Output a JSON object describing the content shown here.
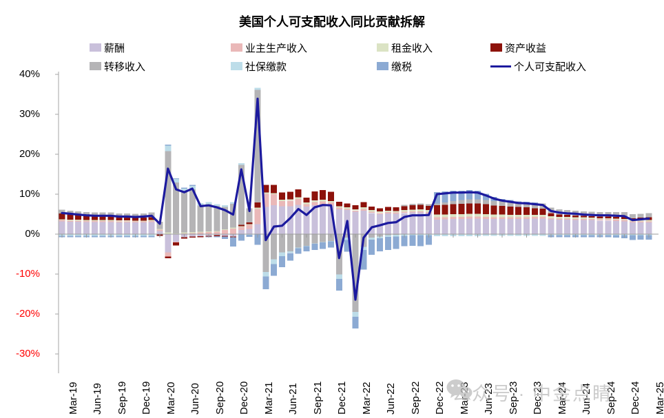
{
  "title": "美国个人可支配收入同比贡献拆解",
  "watermark": {
    "text": "公众号 · 中金点睛",
    "icon": "wechat-icon"
  },
  "legend": [
    {
      "label": "薪酬",
      "color": "#c9c0db",
      "type": "box"
    },
    {
      "label": "业主生产收入",
      "color": "#eab8b8",
      "type": "box"
    },
    {
      "label": "租金收入",
      "color": "#dbe3c4",
      "type": "box"
    },
    {
      "label": "资产收益",
      "color": "#8d120b",
      "type": "box"
    },
    {
      "label": "转移收入",
      "color": "#b5b4b6",
      "type": "box"
    },
    {
      "label": "社保缴款",
      "color": "#bddde9",
      "type": "box"
    },
    {
      "label": "缴税",
      "color": "#8caad3",
      "type": "box"
    },
    {
      "label": "个人可支配收入",
      "color": "#1c1a9e",
      "type": "line"
    }
  ],
  "y_axis": {
    "tick_labels": [
      "40%",
      "30%",
      "20%",
      "10%",
      "0%",
      "-10%",
      "-20%",
      "-30%"
    ],
    "tick_values": [
      40,
      30,
      20,
      10,
      0,
      -10,
      -20,
      -30
    ],
    "positive_color": "#000000",
    "negative_color": "#ff0000"
  },
  "chart_data": {
    "type": "bar",
    "subtype": "stacked-bar-with-line",
    "title": "美国个人可支配收入同比贡献拆解",
    "ylabel": "%",
    "ylim": [
      -30,
      40
    ],
    "x_tick_every": 3,
    "grid": false,
    "legend_position": "top",
    "months": [
      "Mar-19",
      "Apr-19",
      "May-19",
      "Jun-19",
      "Jul-19",
      "Aug-19",
      "Sep-19",
      "Oct-19",
      "Nov-19",
      "Dec-19",
      "Jan-20",
      "Feb-20",
      "Mar-20",
      "Apr-20",
      "May-20",
      "Jun-20",
      "Jul-20",
      "Aug-20",
      "Sep-20",
      "Oct-20",
      "Nov-20",
      "Dec-20",
      "Jan-21",
      "Feb-21",
      "Mar-21",
      "Apr-21",
      "May-21",
      "Jun-21",
      "Jul-21",
      "Aug-21",
      "Sep-21",
      "Oct-21",
      "Nov-21",
      "Dec-21",
      "Jan-22",
      "Feb-22",
      "Mar-22",
      "Apr-22",
      "May-22",
      "Jun-22",
      "Jul-22",
      "Aug-22",
      "Sep-22",
      "Oct-22",
      "Nov-22",
      "Dec-22",
      "Jan-23",
      "Feb-23",
      "Mar-23",
      "Apr-23",
      "May-23",
      "Jun-23",
      "Jul-23",
      "Aug-23",
      "Sep-23",
      "Oct-23",
      "Nov-23",
      "Dec-23",
      "Jan-24",
      "Feb-24",
      "Mar-24",
      "Apr-24",
      "May-24",
      "Jun-24",
      "Jul-24",
      "Aug-24",
      "Sep-24",
      "Oct-24",
      "Nov-24",
      "Dec-24",
      "Jan-25",
      "Feb-25",
      "Mar-25"
    ],
    "series": [
      {
        "name": "薪酬",
        "color": "#c9c0db",
        "values": [
          3.2,
          3.1,
          3.1,
          3.0,
          3.0,
          3.0,
          3.0,
          2.9,
          2.9,
          2.9,
          2.9,
          3.0,
          0.8,
          -4.6,
          -1.9,
          -0.8,
          -0.6,
          -0.5,
          -0.4,
          -0.3,
          -0.4,
          -0.6,
          1.0,
          1.3,
          2.5,
          6.8,
          7.2,
          7.0,
          7.0,
          7.3,
          6.9,
          7.2,
          7.4,
          7.2,
          6.2,
          6.0,
          5.6,
          5.9,
          5.3,
          5.0,
          5.2,
          5.1,
          5.3,
          5.4,
          5.4,
          5.2,
          3.6,
          3.7,
          3.8,
          3.8,
          3.9,
          3.9,
          3.8,
          3.8,
          3.8,
          3.8,
          3.8,
          3.8,
          3.9,
          3.9,
          3.7,
          3.6,
          3.6,
          3.5,
          3.5,
          3.5,
          3.4,
          3.4,
          3.3,
          3.2,
          2.9,
          2.9,
          2.9
        ]
      },
      {
        "name": "业主生产收入",
        "color": "#eab8b8",
        "values": [
          0.3,
          0.3,
          0.3,
          0.3,
          0.3,
          0.3,
          0.3,
          0.3,
          0.3,
          0.3,
          0.3,
          0.3,
          0.3,
          -1.0,
          -0.2,
          0.2,
          0.3,
          0.4,
          0.5,
          0.6,
          1.0,
          1.4,
          0.8,
          1.0,
          3.8,
          3.3,
          2.8,
          1.3,
          1.4,
          1.5,
          0.6,
          0.8,
          0.8,
          0.7,
          0.4,
          0.3,
          0.3,
          0.4,
          0.3,
          0.3,
          0.3,
          0.3,
          0.3,
          0.3,
          0.3,
          0.3,
          0.6,
          0.5,
          0.5,
          0.5,
          0.5,
          0.5,
          0.5,
          0.4,
          0.4,
          0.4,
          0.4,
          0.4,
          0.4,
          0.4,
          0.3,
          0.3,
          0.3,
          0.3,
          0.3,
          0.3,
          0.3,
          0.3,
          0.3,
          0.3,
          0.3,
          0.3,
          0.3
        ]
      },
      {
        "name": "租金收入",
        "color": "#dbe3c4",
        "values": [
          0.2,
          0.2,
          0.2,
          0.2,
          0.2,
          0.2,
          0.2,
          0.2,
          0.2,
          0.2,
          0.2,
          0.2,
          0.2,
          0.4,
          0.2,
          0.2,
          0.2,
          0.2,
          0.2,
          0.2,
          0.2,
          0.2,
          0.2,
          0.2,
          0.3,
          0.3,
          0.3,
          0.3,
          0.3,
          0.4,
          0.4,
          0.4,
          0.4,
          0.4,
          0.4,
          0.4,
          0.3,
          0.4,
          0.4,
          0.4,
          0.4,
          0.4,
          0.4,
          0.4,
          0.5,
          0.5,
          0.7,
          0.7,
          0.7,
          0.7,
          0.7,
          0.7,
          0.7,
          0.7,
          0.7,
          0.6,
          0.6,
          0.6,
          0.5,
          0.5,
          0.5,
          0.4,
          0.4,
          0.4,
          0.4,
          0.3,
          0.3,
          0.3,
          0.3,
          0.3,
          0.3,
          0.3,
          0.3
        ]
      },
      {
        "name": "资产收益",
        "color": "#8d120b",
        "values": [
          1.5,
          1.4,
          1.2,
          1.1,
          1.0,
          0.9,
          0.9,
          0.8,
          0.8,
          0.7,
          0.7,
          0.7,
          -0.4,
          -0.4,
          -0.7,
          -0.3,
          -0.3,
          -0.3,
          -0.2,
          -0.2,
          -0.2,
          -0.2,
          0.3,
          0.4,
          1.3,
          1.9,
          2.0,
          1.8,
          1.9,
          2.0,
          1.2,
          2.3,
          2.4,
          2.3,
          1.1,
          1.0,
          1.0,
          1.3,
          0.9,
          0.8,
          0.9,
          0.9,
          1.0,
          1.1,
          1.1,
          1.1,
          2.3,
          2.4,
          2.5,
          2.6,
          2.6,
          2.6,
          2.5,
          2.3,
          2.2,
          2.1,
          2.0,
          1.9,
          1.7,
          1.6,
          0.8,
          0.6,
          0.5,
          0.5,
          0.4,
          0.4,
          0.4,
          0.4,
          0.4,
          0.5,
          0.5,
          0.6,
          0.7
        ]
      },
      {
        "name": "转移收入",
        "color": "#b5b4b6",
        "values": [
          0.9,
          0.9,
          0.9,
          0.9,
          0.9,
          1.0,
          1.0,
          1.0,
          1.0,
          1.0,
          1.1,
          1.2,
          1.8,
          20.4,
          12.7,
          10.1,
          10.7,
          6.6,
          6.8,
          6.3,
          5.6,
          6.0,
          15.0,
          3.6,
          28.2,
          -9.5,
          -6.3,
          -4.6,
          -4.3,
          -3.4,
          -2.9,
          -2.3,
          -2.0,
          -1.7,
          -10.1,
          -0.9,
          -19.5,
          -3.2,
          -0.9,
          -0.6,
          -0.3,
          -0.2,
          0.3,
          0.4,
          0.4,
          0.4,
          0.5,
          0.6,
          0.8,
          0.9,
          1.0,
          1.0,
          1.0,
          1.1,
          1.1,
          1.2,
          1.2,
          1.2,
          1.3,
          1.3,
          1.3,
          1.3,
          1.2,
          1.2,
          1.1,
          1.1,
          1.1,
          1.1,
          1.2,
          1.2,
          1.0,
          1.0,
          1.1
        ]
      },
      {
        "name": "社保缴款",
        "color": "#bddde9",
        "values": [
          -0.4,
          -0.4,
          -0.4,
          -0.4,
          -0.4,
          -0.4,
          -0.4,
          -0.4,
          -0.4,
          -0.4,
          -0.4,
          -0.4,
          -0.1,
          1.4,
          0.9,
          0.9,
          0.9,
          0.6,
          0.5,
          0.4,
          0.4,
          0.4,
          0.5,
          -0.2,
          0.5,
          -1.1,
          -1.2,
          -0.9,
          -0.4,
          -0.1,
          -0.1,
          -0.1,
          -0.1,
          -0.1,
          -1.1,
          -0.6,
          -1.2,
          -0.8,
          -0.5,
          -0.4,
          -0.4,
          -0.4,
          -0.4,
          -0.3,
          -0.3,
          -0.3,
          -0.5,
          -0.5,
          -0.5,
          -0.5,
          -0.5,
          -0.5,
          -0.4,
          -0.4,
          -0.4,
          -0.4,
          -0.4,
          -0.4,
          -0.4,
          -0.4,
          -0.3,
          -0.3,
          -0.3,
          -0.3,
          -0.3,
          -0.3,
          -0.3,
          -0.3,
          -0.3,
          -0.3,
          -0.3,
          -0.3,
          -0.3
        ]
      },
      {
        "name": "缴税",
        "color": "#8caad3",
        "values": [
          -0.4,
          -0.4,
          -0.4,
          -0.4,
          -0.4,
          -0.4,
          -0.4,
          -0.4,
          -0.4,
          -0.4,
          -0.4,
          -0.4,
          0.0,
          0.2,
          0.2,
          0.2,
          0.2,
          0.0,
          -0.2,
          -0.3,
          -0.6,
          -2.3,
          -1.6,
          -0.5,
          -2.7,
          -3.2,
          -2.9,
          -2.8,
          -1.9,
          -1.4,
          -1.3,
          -1.6,
          -1.6,
          -1.6,
          -2.9,
          -2.9,
          -2.9,
          -4.9,
          -3.8,
          -3.3,
          -3.3,
          -3.1,
          -2.6,
          -2.6,
          -2.7,
          -2.4,
          2.8,
          2.8,
          2.6,
          2.4,
          2.3,
          2.2,
          1.6,
          1.0,
          0.6,
          0.4,
          0.2,
          0.2,
          0.1,
          0.0,
          -0.5,
          -0.5,
          -0.5,
          -0.5,
          -0.5,
          -0.5,
          -0.5,
          -0.5,
          -0.6,
          -0.7,
          -1.2,
          -1.1,
          -1.1
        ]
      }
    ],
    "line": {
      "name": "个人可支配收入",
      "color": "#1c1a9e",
      "values": [
        5.3,
        5.1,
        4.9,
        4.7,
        4.6,
        4.6,
        4.6,
        4.4,
        4.4,
        4.3,
        4.4,
        4.6,
        2.6,
        16.4,
        11.2,
        10.5,
        11.4,
        7.0,
        7.2,
        6.7,
        6.0,
        4.9,
        16.2,
        5.8,
        33.9,
        -1.5,
        1.9,
        2.1,
        4.0,
        6.3,
        4.8,
        6.7,
        7.3,
        7.2,
        -6.0,
        3.3,
        -16.4,
        -0.9,
        1.7,
        2.2,
        2.8,
        3.0,
        4.3,
        4.7,
        4.7,
        4.8,
        10.0,
        10.2,
        10.4,
        10.4,
        10.5,
        10.4,
        9.7,
        8.9,
        8.4,
        8.1,
        7.8,
        7.7,
        7.5,
        7.3,
        5.8,
        5.4,
        5.2,
        5.1,
        4.9,
        4.8,
        4.7,
        4.7,
        4.6,
        4.5,
        3.5,
        3.7,
        3.9
      ]
    }
  }
}
